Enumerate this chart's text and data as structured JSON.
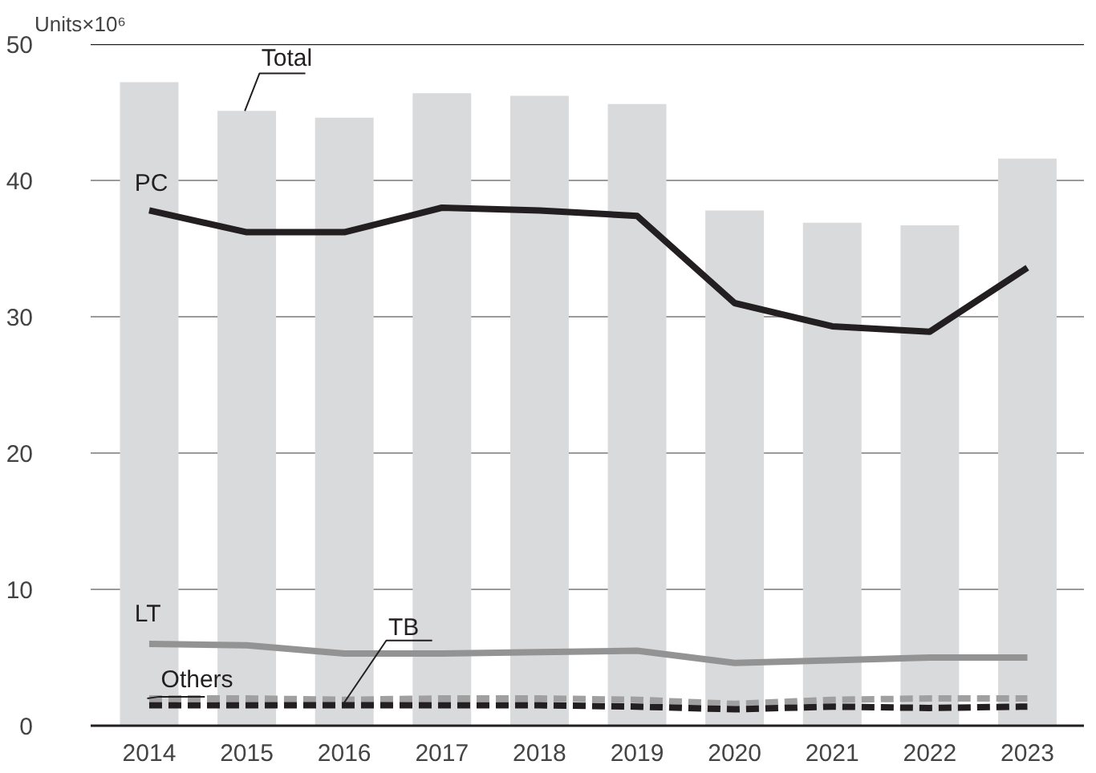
{
  "chart_data": {
    "type": "bar",
    "ylabel": "Units×10⁶",
    "categories": [
      "2014",
      "2015",
      "2016",
      "2017",
      "2018",
      "2019",
      "2020",
      "2021",
      "2022",
      "2023"
    ],
    "series": [
      {
        "name": "Total",
        "color": "#d9dadc",
        "values": [
          47.2,
          45.1,
          44.6,
          46.4,
          46.2,
          45.6,
          37.8,
          36.9,
          36.7,
          41.6
        ]
      },
      {
        "name": "PC",
        "type": "line",
        "color": "#231f20",
        "line_style": "solid",
        "values": [
          37.8,
          36.2,
          36.2,
          38.0,
          37.8,
          37.4,
          31.0,
          29.3,
          28.9,
          33.6
        ]
      },
      {
        "name": "LT",
        "type": "line",
        "color": "#939393",
        "line_style": "solid",
        "values": [
          6.0,
          5.9,
          5.3,
          5.3,
          5.4,
          5.5,
          4.6,
          4.8,
          5.0,
          5.0
        ]
      },
      {
        "name": "Others",
        "type": "line",
        "color": "#a0a0a0",
        "line_style": "dashed",
        "values": [
          2.0,
          2.0,
          1.9,
          2.0,
          2.0,
          1.9,
          1.6,
          1.9,
          2.0,
          2.0
        ]
      },
      {
        "name": "TB",
        "type": "line",
        "color": "#231f20",
        "line_style": "dashed",
        "values": [
          1.5,
          1.5,
          1.5,
          1.5,
          1.5,
          1.4,
          1.2,
          1.4,
          1.3,
          1.4
        ]
      }
    ],
    "ylim": [
      0,
      50
    ],
    "yticks": [
      0,
      10,
      20,
      30,
      40,
      50
    ],
    "grid": "y"
  }
}
